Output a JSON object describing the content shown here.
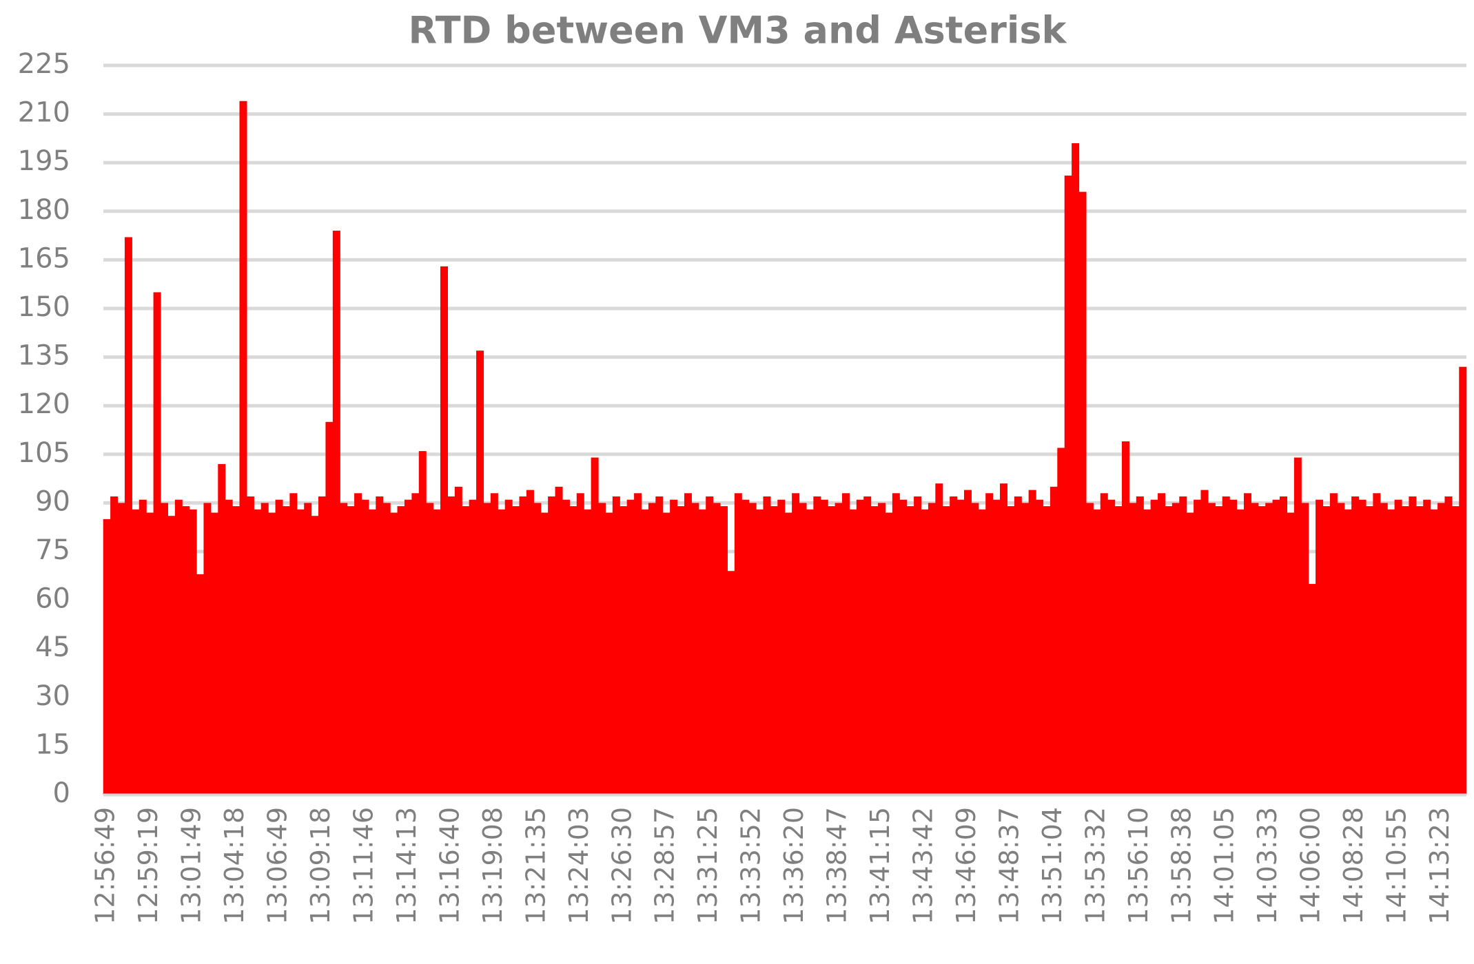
{
  "chart_data": {
    "type": "bar",
    "title": "RTD between VM3 and Asterisk",
    "categories": [
      "12:56:49",
      null,
      null,
      null,
      null,
      null,
      "12:59:19",
      null,
      null,
      null,
      null,
      null,
      "13:01:49",
      null,
      null,
      null,
      null,
      null,
      "13:04:18",
      null,
      null,
      null,
      null,
      null,
      "13:06:49",
      null,
      null,
      null,
      null,
      null,
      "13:09:18",
      null,
      null,
      null,
      null,
      null,
      "13:11:46",
      null,
      null,
      null,
      null,
      null,
      "13:14:13",
      null,
      null,
      null,
      null,
      null,
      "13:16:40",
      null,
      null,
      null,
      null,
      null,
      "13:19:08",
      null,
      null,
      null,
      null,
      null,
      "13:21:35",
      null,
      null,
      null,
      null,
      null,
      "13:24:03",
      null,
      null,
      null,
      null,
      null,
      "13:26:30",
      null,
      null,
      null,
      null,
      null,
      "13:28:57",
      null,
      null,
      null,
      null,
      null,
      "13:31:25",
      null,
      null,
      null,
      null,
      null,
      "13:33:52",
      null,
      null,
      null,
      null,
      null,
      "13:36:20",
      null,
      null,
      null,
      null,
      null,
      "13:38:47",
      null,
      null,
      null,
      null,
      null,
      "13:41:15",
      null,
      null,
      null,
      null,
      null,
      "13:43:42",
      null,
      null,
      null,
      null,
      null,
      "13:46:09",
      null,
      null,
      null,
      null,
      null,
      "13:48:37",
      null,
      null,
      null,
      null,
      null,
      "13:51:04",
      null,
      null,
      null,
      null,
      null,
      "13:53:32",
      null,
      null,
      null,
      null,
      null,
      "13:56:10",
      null,
      null,
      null,
      null,
      null,
      "13:58:38",
      null,
      null,
      null,
      null,
      null,
      "14:01:05",
      null,
      null,
      null,
      null,
      null,
      "14:03:33",
      null,
      null,
      null,
      null,
      null,
      "14:06:00",
      null,
      null,
      null,
      null,
      null,
      "14:08:28",
      null,
      null,
      null,
      null,
      null,
      "14:10:55",
      null,
      null,
      null,
      null,
      null,
      "14:13:23",
      null,
      null,
      null
    ],
    "values": [
      85,
      92,
      90,
      172,
      88,
      91,
      87,
      155,
      90,
      86,
      91,
      89,
      88,
      68,
      90,
      87,
      102,
      91,
      89,
      214,
      92,
      88,
      90,
      87,
      91,
      89,
      93,
      88,
      90,
      86,
      92,
      115,
      174,
      90,
      89,
      93,
      91,
      88,
      92,
      90,
      87,
      89,
      91,
      93,
      106,
      90,
      88,
      163,
      92,
      95,
      89,
      91,
      137,
      90,
      93,
      88,
      91,
      89,
      92,
      94,
      90,
      87,
      92,
      95,
      91,
      89,
      93,
      88,
      104,
      90,
      87,
      92,
      89,
      91,
      93,
      88,
      90,
      92,
      87,
      91,
      89,
      93,
      90,
      88,
      92,
      90,
      89,
      69,
      93,
      91,
      90,
      88,
      92,
      89,
      91,
      87,
      93,
      90,
      88,
      92,
      91,
      89,
      90,
      93,
      88,
      91,
      92,
      89,
      90,
      87,
      93,
      91,
      89,
      92,
      88,
      90,
      96,
      89,
      92,
      91,
      94,
      90,
      88,
      93,
      91,
      96,
      89,
      92,
      90,
      94,
      91,
      89,
      95,
      107,
      191,
      201,
      186,
      90,
      88,
      93,
      91,
      89,
      109,
      90,
      92,
      88,
      91,
      93,
      89,
      90,
      92,
      87,
      91,
      94,
      90,
      89,
      92,
      91,
      88,
      93,
      90,
      89,
      90,
      91,
      92,
      87,
      104,
      90,
      65,
      91,
      89,
      93,
      90,
      88,
      92,
      91,
      89,
      93,
      90,
      88,
      91,
      89,
      92,
      89,
      91,
      88,
      90,
      92,
      89,
      132
    ],
    "color": "#ff0000",
    "ylim": [
      0,
      225
    ],
    "yticks": [
      0,
      15,
      30,
      45,
      60,
      75,
      90,
      105,
      120,
      135,
      150,
      165,
      180,
      195,
      210,
      225
    ],
    "grid": true
  }
}
